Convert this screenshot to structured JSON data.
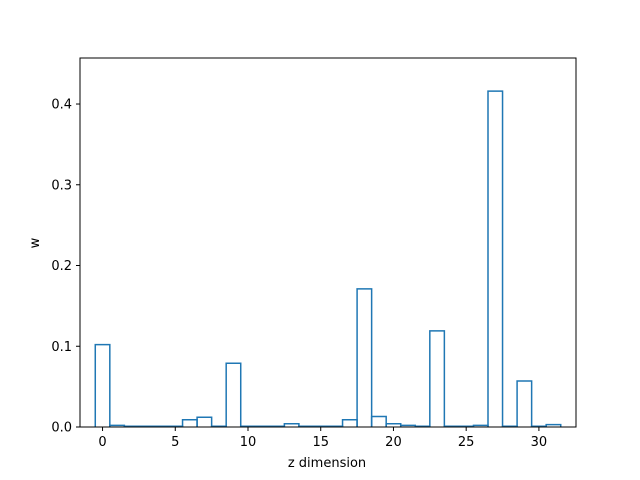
{
  "chart_data": {
    "type": "bar",
    "style": "step-histogram",
    "title": "",
    "xlabel": "z dimension",
    "ylabel": "w",
    "xlim": [
      -1.55,
      32.55
    ],
    "ylim": [
      0,
      0.457
    ],
    "xticks": [
      0,
      5,
      10,
      15,
      20,
      25,
      30
    ],
    "yticks": [
      0.0,
      0.1,
      0.2,
      0.3,
      0.4
    ],
    "ytick_labels": [
      "0.0",
      "0.1",
      "0.2",
      "0.3",
      "0.4"
    ],
    "grid": false,
    "line_color": "#1f77b4",
    "categories": [
      0,
      1,
      2,
      3,
      4,
      5,
      6,
      7,
      8,
      9,
      10,
      11,
      12,
      13,
      14,
      15,
      16,
      17,
      18,
      19,
      20,
      21,
      22,
      23,
      24,
      25,
      26,
      27,
      28,
      29,
      30,
      31
    ],
    "values": [
      0.102,
      0.002,
      0.001,
      0.001,
      0.001,
      0.001,
      0.009,
      0.012,
      0.001,
      0.079,
      0.001,
      0.001,
      0.001,
      0.004,
      0.001,
      0.001,
      0.001,
      0.009,
      0.171,
      0.013,
      0.004,
      0.002,
      0.001,
      0.119,
      0.001,
      0.001,
      0.002,
      0.416,
      0.001,
      0.057,
      0.001,
      0.003
    ]
  }
}
